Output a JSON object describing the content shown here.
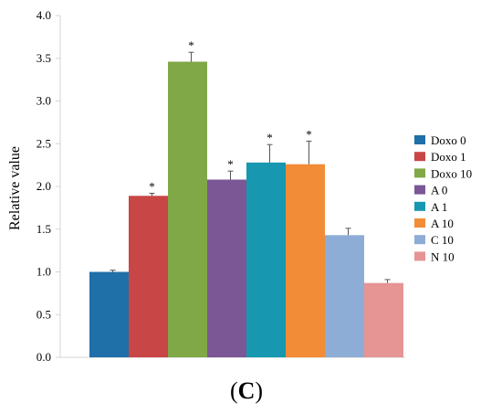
{
  "chart_data": {
    "type": "bar",
    "ylabel": "Relative value",
    "ylim": [
      0,
      4.0
    ],
    "yticks": [
      "0.0",
      "0.5",
      "1.0",
      "1.5",
      "2.0",
      "2.5",
      "3.0",
      "3.5",
      "4.0"
    ],
    "grid": false,
    "legend_position": "right",
    "series": [
      {
        "name": "Doxo 0",
        "value": 1.0,
        "error": 0.02,
        "color": "#1F6FA8",
        "marker": ""
      },
      {
        "name": "Doxo 1",
        "value": 1.89,
        "error": 0.03,
        "color": "#C84645",
        "marker": "*"
      },
      {
        "name": "Doxo 10",
        "value": 3.46,
        "error": 0.11,
        "color": "#80A846",
        "marker": "*"
      },
      {
        "name": "A 0",
        "value": 2.08,
        "error": 0.1,
        "color": "#7B5796",
        "marker": "*"
      },
      {
        "name": "A 1",
        "value": 2.28,
        "error": 0.21,
        "color": "#1798B0",
        "marker": "*"
      },
      {
        "name": "A 10",
        "value": 2.26,
        "error": 0.27,
        "color": "#F28C37",
        "marker": "*"
      },
      {
        "name": "C 10",
        "value": 1.43,
        "error": 0.08,
        "color": "#8EADD6",
        "marker": ""
      },
      {
        "name": "N 10",
        "value": 0.87,
        "error": 0.04,
        "color": "#E69494",
        "marker": ""
      }
    ]
  },
  "caption": {
    "open": "(",
    "letter": "C",
    "close": ")"
  }
}
